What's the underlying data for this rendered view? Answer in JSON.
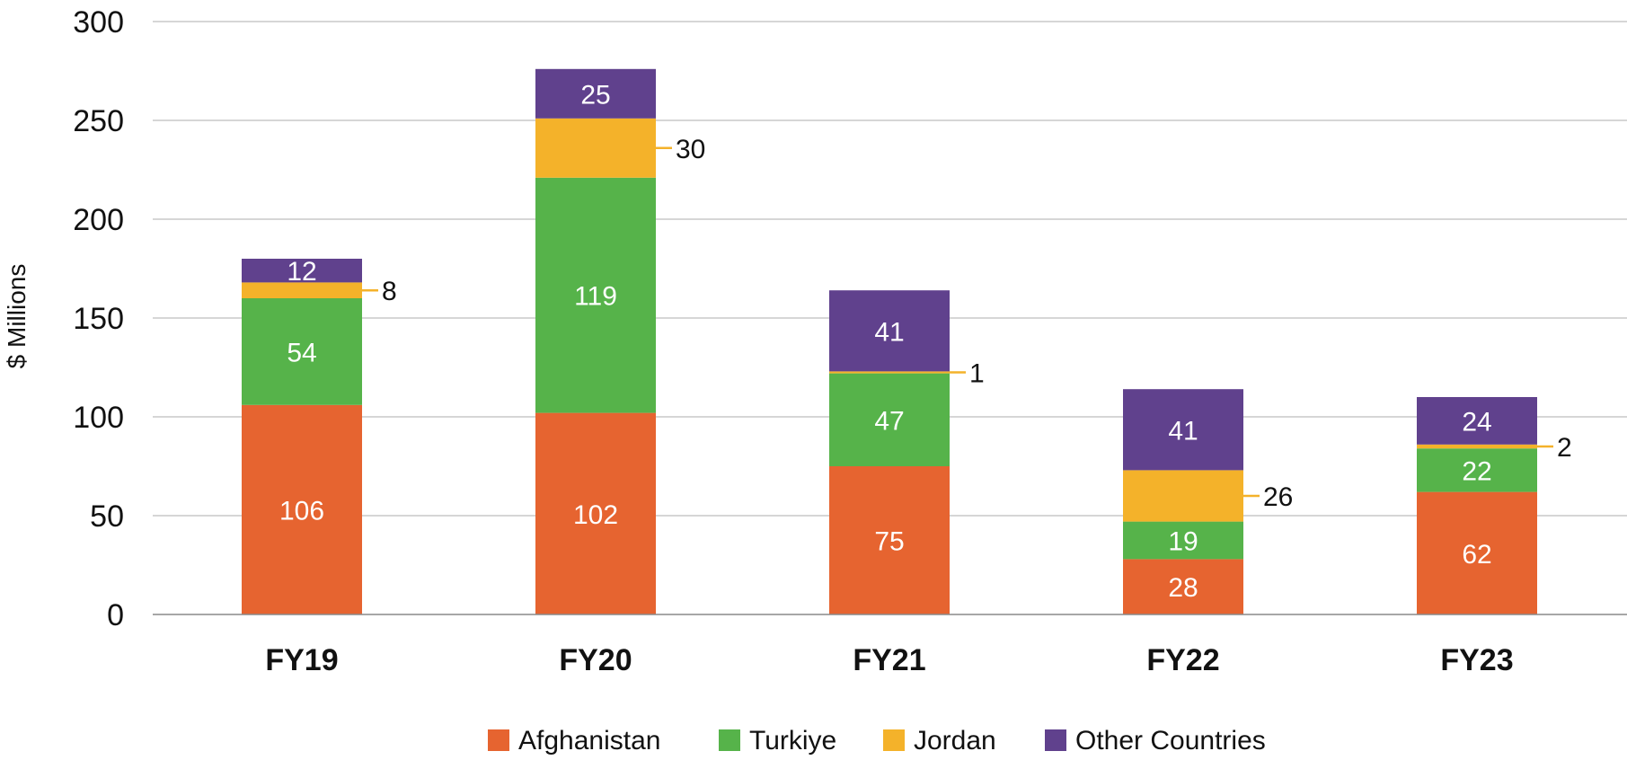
{
  "chart_data": {
    "type": "bar",
    "stacked": true,
    "categories": [
      "FY19",
      "FY20",
      "FY21",
      "FY22",
      "FY23"
    ],
    "series": [
      {
        "name": "Afghanistan",
        "color": "#E66430",
        "values": [
          106,
          102,
          75,
          28,
          62
        ]
      },
      {
        "name": "Turkiye",
        "color": "#56B34A",
        "values": [
          54,
          119,
          47,
          19,
          22
        ]
      },
      {
        "name": "Jordan",
        "color": "#F4B22A",
        "values": [
          8,
          30,
          1,
          26,
          2
        ]
      },
      {
        "name": "Other Countries",
        "color": "#60418D",
        "values": [
          12,
          25,
          41,
          41,
          24
        ]
      }
    ],
    "callout_series": "Jordan",
    "ylabel": "$ Millions",
    "ylim": [
      0,
      300
    ],
    "yticks": [
      0,
      50,
      100,
      150,
      200,
      250,
      300
    ],
    "grid": true,
    "legend": "bottom"
  }
}
